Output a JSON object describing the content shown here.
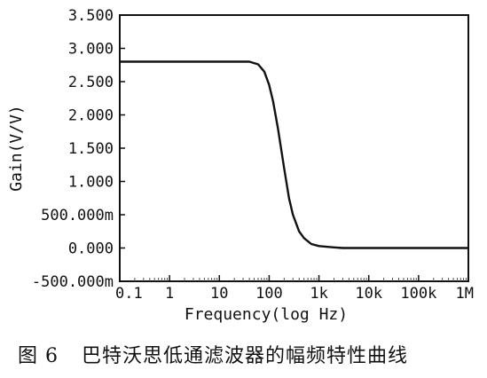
{
  "chart_data": {
    "type": "line",
    "xlabel": "Frequency(log Hz)",
    "ylabel": "Gain(V/V)",
    "x_scale": "log",
    "xlim": [
      0.1,
      1000000
    ],
    "ylim": [
      -0.5,
      3.5
    ],
    "x_ticks": [
      0.1,
      1,
      10,
      100,
      1000,
      10000,
      100000,
      1000000
    ],
    "x_tick_labels": [
      "0.1",
      "1",
      "10",
      "100",
      "1k",
      "10k",
      "100k",
      "1M"
    ],
    "y_ticks": [
      3.5,
      3.0,
      2.5,
      2.0,
      1.5,
      1.0,
      0.5,
      0.0,
      -0.5
    ],
    "y_tick_labels": [
      "3.500",
      "3.000",
      "2.500",
      "2.000",
      "1.500",
      "1.000",
      "500.000m",
      "0.000",
      "-500.000m"
    ],
    "grid": false,
    "series": [
      {
        "x": [
          0.1,
          1,
          10,
          40,
          60,
          80,
          100,
          120,
          150,
          200,
          250,
          300,
          400,
          500,
          700,
          1000,
          2000,
          3000,
          5000,
          10000,
          100000,
          1000000
        ],
        "y": [
          2.8,
          2.8,
          2.8,
          2.8,
          2.76,
          2.65,
          2.45,
          2.2,
          1.8,
          1.2,
          0.75,
          0.5,
          0.25,
          0.15,
          0.06,
          0.03,
          0.01,
          0.0,
          0.0,
          0.0,
          0.0,
          0.0
        ]
      }
    ]
  },
  "caption": {
    "number": "图 6",
    "text": "巴特沃思低通滤波器的幅频特性曲线"
  }
}
